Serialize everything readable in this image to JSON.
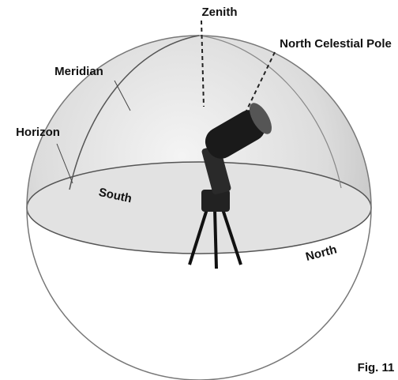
{
  "labels": {
    "zenith": "Zenith",
    "north_celestial_pole": "North Celestial Pole",
    "meridian": "Meridian",
    "horizon": "Horizon",
    "south": "South",
    "north": "North",
    "figure": "Fig. 11"
  }
}
